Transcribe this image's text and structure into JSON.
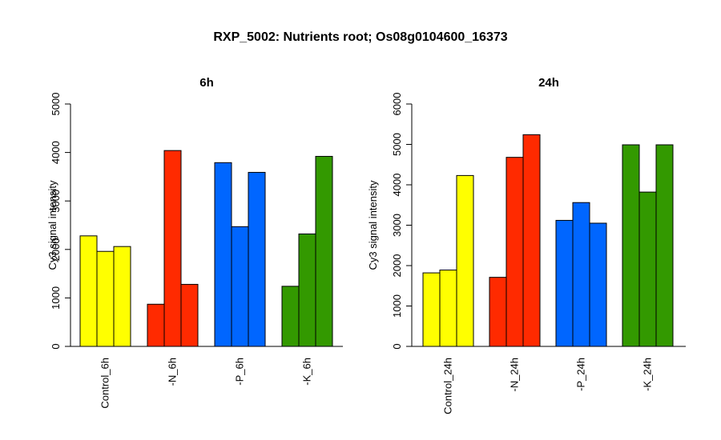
{
  "title": "RXP_5002: Nutrients root; Os08g0104600_16373",
  "chart_data": [
    {
      "type": "bar",
      "title": "6h",
      "ylabel": "Cy3 signal intensity",
      "xlabel": "",
      "ylim": [
        0,
        5000
      ],
      "yticks": [
        0,
        1000,
        2000,
        3000,
        4000,
        5000
      ],
      "grid": false,
      "categories": [
        "Control_6h",
        "-N_6h",
        "-P_6h",
        "-K_6h"
      ],
      "colors": [
        "#ffff00",
        "#ff2a00",
        "#0066ff",
        "#339900"
      ],
      "groups": [
        {
          "category": "Control_6h",
          "values": [
            2280,
            1960,
            2060
          ]
        },
        {
          "category": "-N_6h",
          "values": [
            870,
            4040,
            1280
          ]
        },
        {
          "category": "-P_6h",
          "values": [
            3790,
            2470,
            3590
          ]
        },
        {
          "category": "-K_6h",
          "values": [
            1240,
            2320,
            3920
          ]
        }
      ]
    },
    {
      "type": "bar",
      "title": "24h",
      "ylabel": "Cy3 signal intensity",
      "xlabel": "",
      "ylim": [
        0,
        6000
      ],
      "yticks": [
        0,
        1000,
        2000,
        3000,
        4000,
        5000,
        6000
      ],
      "grid": false,
      "categories": [
        "Control_24h",
        "-N_24h",
        "-P_24h",
        "-K_24h"
      ],
      "colors": [
        "#ffff00",
        "#ff2a00",
        "#0066ff",
        "#339900"
      ],
      "groups": [
        {
          "category": "Control_24h",
          "values": [
            1820,
            1890,
            4230
          ]
        },
        {
          "category": "-N_24h",
          "values": [
            1710,
            4680,
            5240
          ]
        },
        {
          "category": "-P_24h",
          "values": [
            3120,
            3560,
            3050
          ]
        },
        {
          "category": "-K_24h",
          "values": [
            4990,
            3820,
            4990
          ]
        }
      ]
    }
  ]
}
